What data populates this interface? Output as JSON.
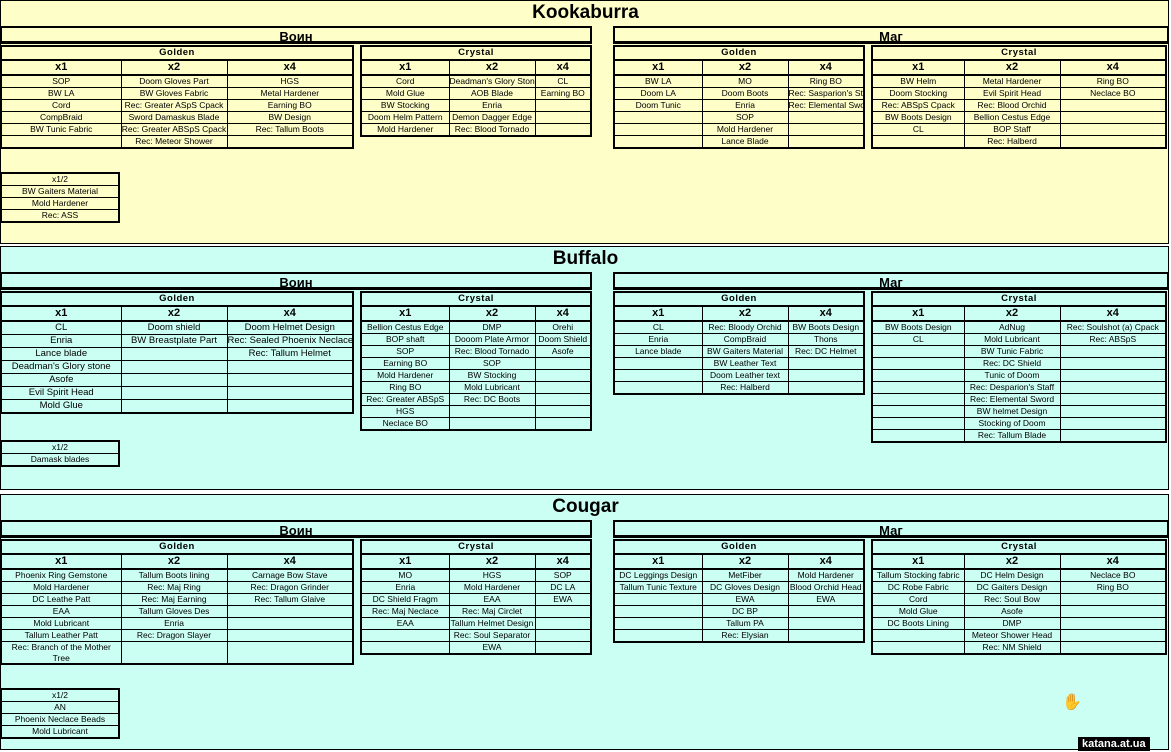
{
  "colors": {
    "kookaburra_bg": "#fefec8",
    "buffalo_bg": "#ccfff4",
    "cougar_bg": "#ccfff4"
  },
  "sections": {
    "kookaburra": {
      "title": "Kookaburra",
      "left_side": "Воин",
      "right_side": "Маг",
      "voin_golden": {
        "label": "Golden",
        "h1": "x1",
        "h2": "x2",
        "h4": "x4",
        "rows": [
          [
            "SOP",
            "Doom Gloves Part",
            "HGS"
          ],
          [
            "BW LA",
            "BW Gloves Fabric",
            "Metal Hardener"
          ],
          [
            "Cord",
            "Rec: Greater ASpS Cpack",
            "Earning BO"
          ],
          [
            "CompBraid",
            "Sword Damaskus Blade",
            "BW Design"
          ],
          [
            "BW Tunic Fabric",
            "Rec: Greater ABSpS Cpack",
            "Rec: Tallum Boots"
          ],
          [
            "",
            "Rec: Meteor Shower",
            ""
          ]
        ]
      },
      "voin_crystal": {
        "label": "Crystal",
        "h1": "x1",
        "h2": "x2",
        "h4": "x4",
        "rows": [
          [
            "Cord",
            "Deadman's Glory Stone",
            "CL"
          ],
          [
            "Mold Glue",
            "AOB Blade",
            "Earning BO"
          ],
          [
            "BW Stocking",
            "Enria",
            ""
          ],
          [
            "Doom Helm Pattern",
            "Demon Dagger Edge",
            ""
          ],
          [
            "Mold Hardener",
            "Rec: Blood Tornado",
            ""
          ]
        ]
      },
      "mag_golden": {
        "label": "Golden",
        "h1": "x1",
        "h2": "x2",
        "h4": "x4",
        "rows": [
          [
            "BW LA",
            "MO",
            "Ring BO"
          ],
          [
            "Doom LA",
            "Doom Boots",
            "Rec: Sasparion's Staff"
          ],
          [
            "Doom Tunic",
            "Enria",
            "Rec: Elemental Sword"
          ],
          [
            "",
            "SOP",
            ""
          ],
          [
            "",
            "Mold Hardener",
            ""
          ],
          [
            "",
            "Lance Blade",
            ""
          ]
        ]
      },
      "mag_crystal": {
        "label": "Crystal",
        "h1": "x1",
        "h2": "x2",
        "h4": "x4",
        "rows": [
          [
            "BW Helm",
            "Metal Hardener",
            "Ring BO"
          ],
          [
            "Doom Stocking",
            "Evil Spirit Head",
            "Neclace BO"
          ],
          [
            "Rec: ABSpS Cpack",
            "Rec: Blood Orchid",
            ""
          ],
          [
            "BW Boots Design",
            "Bellion Cestus Edge",
            ""
          ],
          [
            "CL",
            "BOP Staff",
            ""
          ],
          [
            "",
            "Rec: Halberd",
            ""
          ]
        ]
      },
      "half": {
        "label": "x1/2",
        "rows": [
          "BW Gaiters Material",
          "Mold Hardener",
          "Rec: ASS"
        ]
      }
    },
    "buffalo": {
      "title": "Buffalo",
      "left_side": "Воин",
      "right_side": "Маг",
      "voin_golden": {
        "label": "Golden",
        "h1": "x1",
        "h2": "x2",
        "h4": "x4",
        "rows": [
          [
            "CL",
            "Doom shield",
            "Doom Helmet Design"
          ],
          [
            "Enria",
            "BW Breastplate Part",
            "Rec: Sealed Phoenix Neclace"
          ],
          [
            "Lance blade",
            "",
            "Rec: Tallum Helmet"
          ],
          [
            "Deadman's Glory stone",
            "",
            ""
          ],
          [
            "Asofe",
            "",
            ""
          ],
          [
            "Evil Spirit Head",
            "",
            ""
          ],
          [
            "Mold Glue",
            "",
            ""
          ]
        ]
      },
      "voin_crystal": {
        "label": "Crystal",
        "h1": "x1",
        "h2": "x2",
        "h4": "x4",
        "rows": [
          [
            "Bellion Cestus Edge",
            "DMP",
            "Orehi"
          ],
          [
            "BOP shaft",
            "Dooom Plate Armor",
            "Doom Shield"
          ],
          [
            "SOP",
            "Rec: Blood Tornado",
            "Asofe"
          ],
          [
            "Earning BO",
            "SOP",
            ""
          ],
          [
            "Mold Hardener",
            "BW Stocking",
            ""
          ],
          [
            "Ring BO",
            "Mold Lubricant",
            ""
          ],
          [
            "Rec: Greater ABSpS",
            "Rec: DC Boots",
            ""
          ],
          [
            "HGS",
            "",
            ""
          ],
          [
            "Neclace BO",
            "",
            ""
          ]
        ]
      },
      "mag_golden": {
        "label": "Golden",
        "h1": "x1",
        "h2": "x2",
        "h4": "x4",
        "rows": [
          [
            "CL",
            "Rec: Bloody Orchid",
            "BW Boots Design"
          ],
          [
            "Enria",
            "CompBraid",
            "Thons"
          ],
          [
            "Lance blade",
            "BW Gaiters Material",
            "Rec: DC Helmet"
          ],
          [
            "",
            "BW Leather Text",
            ""
          ],
          [
            "",
            "Doom Leather text",
            ""
          ],
          [
            "",
            "Rec: Halberd",
            ""
          ]
        ]
      },
      "mag_crystal": {
        "label": "Crystal",
        "h1": "x1",
        "h2": "x2",
        "h4": "x4",
        "rows": [
          [
            "BW Boots Design",
            "AdNug",
            "Rec: Soulshot (a) Cpack"
          ],
          [
            "CL",
            "Mold Lubricant",
            "Rec: ABSpS"
          ],
          [
            "",
            "BW Tunic Fabric",
            ""
          ],
          [
            "",
            "Rec: DC Shield",
            ""
          ],
          [
            "",
            "Tunic of Doom",
            ""
          ],
          [
            "",
            "Rec: Desparion's Staff",
            ""
          ],
          [
            "",
            "Rec: Elemental Sword",
            ""
          ],
          [
            "",
            "BW helmet Design",
            ""
          ],
          [
            "",
            "Stocking of Doom",
            ""
          ],
          [
            "",
            "Rec: Tallum Blade",
            ""
          ]
        ]
      },
      "half": {
        "label": "x1/2",
        "rows": [
          "Damask blades"
        ]
      }
    },
    "cougar": {
      "title": "Cougar",
      "left_side": "Воин",
      "right_side": "Маг",
      "voin_golden": {
        "label": "Golden",
        "h1": "x1",
        "h2": "x2",
        "h4": "x4",
        "rows": [
          [
            "Phoenix Ring Gemstone",
            "Tallum Boots lining",
            "Carnage Bow Stave"
          ],
          [
            "Mold Hardener",
            "Rec: Maj Ring",
            "Rec: Dragon Grinder"
          ],
          [
            "DC Leathe Patt",
            "Rec: Maj Earning",
            "Rec: Tallum Glaive"
          ],
          [
            "EAA",
            "Tallum Gloves Des",
            ""
          ],
          [
            "Mold Lubricant",
            "Enria",
            ""
          ],
          [
            "Tallum Leather Patt",
            "Rec: Dragon Slayer",
            ""
          ],
          [
            "Rec: Branch of the Mother Tree",
            "",
            ""
          ]
        ]
      },
      "voin_crystal": {
        "label": "Crystal",
        "h1": "x1",
        "h2": "x2",
        "h4": "x4",
        "rows": [
          [
            "MO",
            "HGS",
            "SOP"
          ],
          [
            "Enria",
            "Mold Hardener",
            "DC LA"
          ],
          [
            "DC Shield Fragm",
            "EAA",
            "EWA"
          ],
          [
            "Rec: Maj Neclace",
            "Rec: Maj Circlet",
            ""
          ],
          [
            "EAA",
            "Tallum Helmet Design",
            ""
          ],
          [
            "",
            "Rec: Soul Separator",
            ""
          ],
          [
            "",
            "EWA",
            ""
          ]
        ]
      },
      "mag_golden": {
        "label": "Golden",
        "h1": "x1",
        "h2": "x2",
        "h4": "x4",
        "rows": [
          [
            "DC Leggings Design",
            "MetFiber",
            "Mold Hardener"
          ],
          [
            "Tallum Tunic Texture",
            "DC Gloves Design",
            "Blood Orchid Head"
          ],
          [
            "",
            "EWA",
            "EWA"
          ],
          [
            "",
            "DC BP",
            ""
          ],
          [
            "",
            "Tallum PA",
            ""
          ],
          [
            "",
            "Rec: Elysian",
            ""
          ]
        ]
      },
      "mag_crystal": {
        "label": "Crystal",
        "h1": "x1",
        "h2": "x2",
        "h4": "x4",
        "rows": [
          [
            "Tallum Stocking fabric",
            "DC Helm Design",
            "Neclace BO"
          ],
          [
            "DC Robe Fabric",
            "DC Gaiters Design",
            "Ring BO"
          ],
          [
            "Cord",
            "Rec: Soul Bow",
            ""
          ],
          [
            "Mold Glue",
            "Asofe",
            ""
          ],
          [
            "DC Boots Lining",
            "DMP",
            ""
          ],
          [
            "",
            "Meteor Shower Head",
            ""
          ],
          [
            "",
            "Rec: NM Shield",
            ""
          ]
        ]
      },
      "half": {
        "label": "x1/2",
        "rows": [
          "AN",
          "Phoenix Neclace Beads",
          "Mold Lubricant"
        ]
      }
    }
  },
  "watermark": "katana.at.ua",
  "cursor_icon": "hand-cursor-icon"
}
